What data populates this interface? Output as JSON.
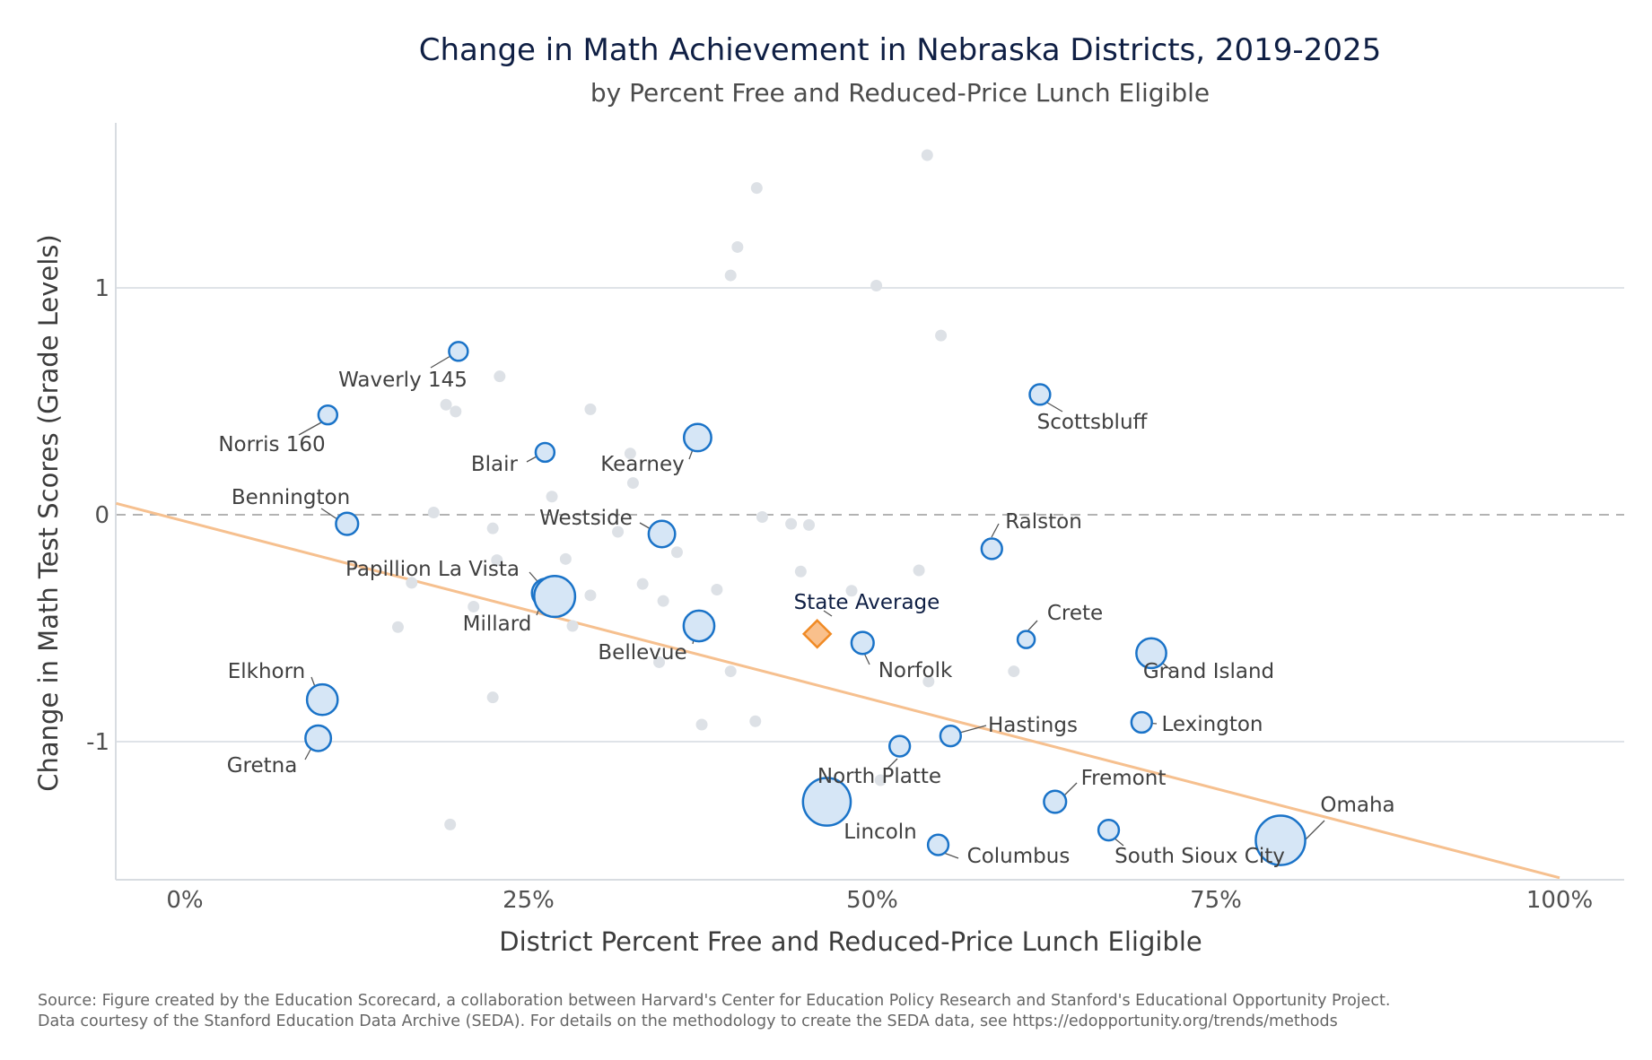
{
  "chart_data": {
    "type": "scatter",
    "title": "Change in Math Achievement in Nebraska Districts, 2019-2025",
    "subtitle": "by Percent Free and Reduced-Price Lunch Eligible",
    "xlabel": "District Percent Free and Reduced-Price Lunch Eligible",
    "ylabel": "Change in Math Test Scores (Grade Levels)",
    "xlim": [
      -0.05,
      1.05
    ],
    "ylim": [
      -1.6,
      1.73
    ],
    "x_ticks": [
      {
        "value": 0,
        "label": "0%"
      },
      {
        "value": 0.25,
        "label": "25%"
      },
      {
        "value": 0.5,
        "label": "50%"
      },
      {
        "value": 0.75,
        "label": "75%"
      },
      {
        "value": 1.0,
        "label": "100%"
      }
    ],
    "y_ticks": [
      {
        "value": 1,
        "label": "1"
      },
      {
        "value": 0,
        "label": "0"
      },
      {
        "value": -1,
        "label": "-1"
      }
    ],
    "grid": "horizontal",
    "reference_line_y": 0,
    "trend_line": {
      "x": [
        -0.05,
        1.0
      ],
      "y": [
        0.05,
        -1.6
      ],
      "color": "#f6c08f"
    },
    "highlight_color": "#1a73c8",
    "highlight_fill": "#d6e6f6",
    "background_point_color": "#dde1e6",
    "state_average": {
      "label": "State Average",
      "x": 0.46,
      "y": -0.525,
      "color": "#f08a24",
      "fill": "#f9c08c"
    },
    "labeled_districts": [
      {
        "name": "Norris 160",
        "x": 0.104,
        "y": 0.44,
        "size": 1.1
      },
      {
        "name": "Waverly 145",
        "x": 0.199,
        "y": 0.72,
        "size": 1.1
      },
      {
        "name": "Bennington",
        "x": 0.118,
        "y": -0.04,
        "size": 1.3
      },
      {
        "name": "Blair",
        "x": 0.262,
        "y": 0.275,
        "size": 1.1
      },
      {
        "name": "Kearney",
        "x": 0.373,
        "y": 0.34,
        "size": 1.6
      },
      {
        "name": "Westside",
        "x": 0.347,
        "y": -0.085,
        "size": 1.55
      },
      {
        "name": "Papillion La Vista",
        "x": 0.263,
        "y": -0.345,
        "size": 1.7
      },
      {
        "name": "Millard",
        "x": 0.269,
        "y": -0.36,
        "size": 2.4
      },
      {
        "name": "Bellevue",
        "x": 0.374,
        "y": -0.49,
        "size": 1.8
      },
      {
        "name": "Elkhorn",
        "x": 0.1,
        "y": -0.815,
        "size": 1.8
      },
      {
        "name": "Gretna",
        "x": 0.097,
        "y": -0.985,
        "size": 1.5
      },
      {
        "name": "Scottsbluff",
        "x": 0.622,
        "y": 0.53,
        "size": 1.2
      },
      {
        "name": "Ralston",
        "x": 0.587,
        "y": -0.15,
        "size": 1.2
      },
      {
        "name": "Crete",
        "x": 0.612,
        "y": -0.55,
        "size": 1.0
      },
      {
        "name": "Norfolk",
        "x": 0.493,
        "y": -0.565,
        "size": 1.3
      },
      {
        "name": "Grand Island",
        "x": 0.703,
        "y": -0.61,
        "size": 1.75
      },
      {
        "name": "Lexington",
        "x": 0.696,
        "y": -0.915,
        "size": 1.2
      },
      {
        "name": "Hastings",
        "x": 0.557,
        "y": -0.975,
        "size": 1.2
      },
      {
        "name": "North Platte",
        "x": 0.52,
        "y": -1.02,
        "size": 1.2
      },
      {
        "name": "Fremont",
        "x": 0.633,
        "y": -1.265,
        "size": 1.3
      },
      {
        "name": "Lincoln",
        "x": 0.467,
        "y": -1.265,
        "size": 2.8
      },
      {
        "name": "Columbus",
        "x": 0.548,
        "y": -1.455,
        "size": 1.2
      },
      {
        "name": "South Sioux City",
        "x": 0.672,
        "y": -1.39,
        "size": 1.2
      },
      {
        "name": "Omaha",
        "x": 0.797,
        "y": -1.435,
        "size": 2.9
      }
    ],
    "other_districts": [
      {
        "x": 0.54,
        "y": 1.585
      },
      {
        "x": 0.416,
        "y": 1.44
      },
      {
        "x": 0.402,
        "y": 1.18
      },
      {
        "x": 0.397,
        "y": 1.055
      },
      {
        "x": 0.503,
        "y": 1.01
      },
      {
        "x": 0.55,
        "y": 0.79
      },
      {
        "x": 0.229,
        "y": 0.61
      },
      {
        "x": 0.19,
        "y": 0.485
      },
      {
        "x": 0.197,
        "y": 0.455
      },
      {
        "x": 0.295,
        "y": 0.465
      },
      {
        "x": 0.324,
        "y": 0.27
      },
      {
        "x": 0.326,
        "y": 0.14
      },
      {
        "x": 0.267,
        "y": 0.08
      },
      {
        "x": 0.181,
        "y": 0.01
      },
      {
        "x": 0.42,
        "y": -0.01
      },
      {
        "x": 0.441,
        "y": -0.04
      },
      {
        "x": 0.454,
        "y": -0.045
      },
      {
        "x": 0.224,
        "y": -0.06
      },
      {
        "x": 0.315,
        "y": -0.075
      },
      {
        "x": 0.358,
        "y": -0.165
      },
      {
        "x": 0.227,
        "y": -0.2
      },
      {
        "x": 0.277,
        "y": -0.195
      },
      {
        "x": 0.534,
        "y": -0.245
      },
      {
        "x": 0.448,
        "y": -0.25
      },
      {
        "x": 0.165,
        "y": -0.3
      },
      {
        "x": 0.333,
        "y": -0.305
      },
      {
        "x": 0.387,
        "y": -0.33
      },
      {
        "x": 0.485,
        "y": -0.335
      },
      {
        "x": 0.295,
        "y": -0.355
      },
      {
        "x": 0.348,
        "y": -0.38
      },
      {
        "x": 0.21,
        "y": -0.405
      },
      {
        "x": 0.155,
        "y": -0.495
      },
      {
        "x": 0.282,
        "y": -0.49
      },
      {
        "x": 0.345,
        "y": -0.65
      },
      {
        "x": 0.397,
        "y": -0.69
      },
      {
        "x": 0.603,
        "y": -0.69
      },
      {
        "x": 0.541,
        "y": -0.735
      },
      {
        "x": 0.224,
        "y": -0.805
      },
      {
        "x": 0.415,
        "y": -0.91
      },
      {
        "x": 0.376,
        "y": -0.925
      },
      {
        "x": 0.506,
        "y": -1.17
      },
      {
        "x": 0.193,
        "y": -1.365
      }
    ]
  },
  "source_line_1": "Source: Figure created by the Education Scorecard, a collaboration between Harvard's Center for Education Policy Research and Stanford's Educational Opportunity Project.",
  "source_line_2": "Data courtesy of the Stanford Education Data Archive (SEDA). For details on the methodology to create the SEDA data, see https://edopportunity.org/trends/methods"
}
